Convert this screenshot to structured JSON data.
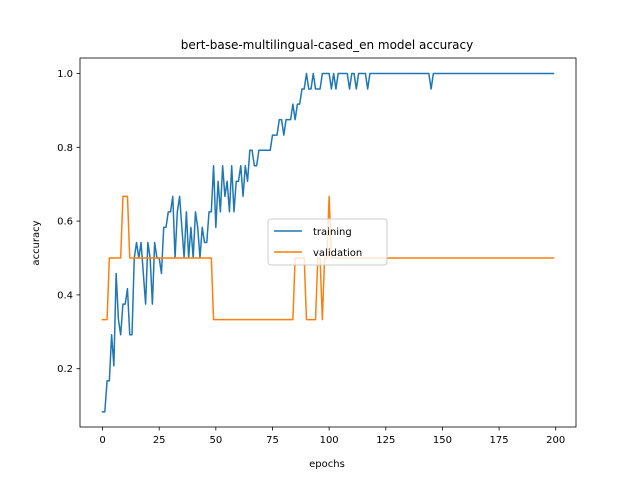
{
  "chart_data": {
    "type": "line",
    "title": "bert-base-multilingual-cased_en model accuracy",
    "xlabel": "epochs",
    "ylabel": "accuracy",
    "xlim": [
      -9.95,
      208.95
    ],
    "ylim": [
      0.042,
      1.042
    ],
    "xticks": [
      0,
      25,
      50,
      75,
      100,
      125,
      150,
      175,
      200
    ],
    "yticks": [
      0.2,
      0.4,
      0.6,
      0.8,
      1.0
    ],
    "xtick_labels": [
      "0",
      "25",
      "50",
      "75",
      "100",
      "125",
      "150",
      "175",
      "200"
    ],
    "ytick_labels": [
      "0.2",
      "0.4",
      "0.6",
      "0.8",
      "1.0"
    ],
    "legend_position": "center-right",
    "series": [
      {
        "name": "training",
        "color": "#1f77b4",
        "points": [
          [
            0,
            0.083
          ],
          [
            1,
            0.083
          ],
          [
            2,
            0.167
          ],
          [
            3,
            0.167
          ],
          [
            4,
            0.292
          ],
          [
            5,
            0.208
          ],
          [
            6,
            0.458
          ],
          [
            7,
            0.333
          ],
          [
            8,
            0.292
          ],
          [
            9,
            0.375
          ],
          [
            10,
            0.375
          ],
          [
            11,
            0.417
          ],
          [
            12,
            0.292
          ],
          [
            13,
            0.292
          ],
          [
            14,
            0.5
          ],
          [
            15,
            0.542
          ],
          [
            16,
            0.5
          ],
          [
            17,
            0.542
          ],
          [
            18,
            0.458
          ],
          [
            19,
            0.375
          ],
          [
            20,
            0.542
          ],
          [
            21,
            0.5
          ],
          [
            22,
            0.375
          ],
          [
            23,
            0.542
          ],
          [
            24,
            0.5
          ],
          [
            25,
            0.5
          ],
          [
            26,
            0.458
          ],
          [
            27,
            0.583
          ],
          [
            28,
            0.583
          ],
          [
            29,
            0.625
          ],
          [
            30,
            0.625
          ],
          [
            31,
            0.667
          ],
          [
            32,
            0.5
          ],
          [
            33,
            0.625
          ],
          [
            34,
            0.667
          ],
          [
            35,
            0.583
          ],
          [
            36,
            0.5
          ],
          [
            37,
            0.625
          ],
          [
            38,
            0.5
          ],
          [
            39,
            0.583
          ],
          [
            40,
            0.5
          ],
          [
            41,
            0.625
          ],
          [
            42,
            0.583
          ],
          [
            43,
            0.5
          ],
          [
            44,
            0.583
          ],
          [
            45,
            0.542
          ],
          [
            46,
            0.542
          ],
          [
            47,
            0.625
          ],
          [
            48,
            0.625
          ],
          [
            49,
            0.75
          ],
          [
            50,
            0.583
          ],
          [
            51,
            0.708
          ],
          [
            52,
            0.625
          ],
          [
            53,
            0.75
          ],
          [
            54,
            0.667
          ],
          [
            55,
            0.708
          ],
          [
            56,
            0.625
          ],
          [
            57,
            0.75
          ],
          [
            58,
            0.625
          ],
          [
            59,
            0.708
          ],
          [
            60,
            0.708
          ],
          [
            61,
            0.75
          ],
          [
            62,
            0.667
          ],
          [
            63,
            0.75
          ],
          [
            64,
            0.708
          ],
          [
            65,
            0.792
          ],
          [
            66,
            0.792
          ],
          [
            67,
            0.75
          ],
          [
            68,
            0.75
          ],
          [
            69,
            0.792
          ],
          [
            70,
            0.792
          ],
          [
            71,
            0.792
          ],
          [
            72,
            0.792
          ],
          [
            73,
            0.792
          ],
          [
            74,
            0.792
          ],
          [
            75,
            0.833
          ],
          [
            76,
            0.833
          ],
          [
            77,
            0.833
          ],
          [
            78,
            0.875
          ],
          [
            79,
            0.875
          ],
          [
            80,
            0.833
          ],
          [
            81,
            0.875
          ],
          [
            82,
            0.875
          ],
          [
            83,
            0.875
          ],
          [
            84,
            0.917
          ],
          [
            85,
            0.875
          ],
          [
            86,
            0.917
          ],
          [
            87,
            0.917
          ],
          [
            88,
            0.958
          ],
          [
            89,
            0.958
          ],
          [
            90,
            1.0
          ],
          [
            91,
            0.958
          ],
          [
            92,
            0.958
          ],
          [
            93,
            1.0
          ],
          [
            94,
            0.958
          ],
          [
            95,
            0.958
          ],
          [
            96,
            0.958
          ],
          [
            97,
            1.0
          ],
          [
            98,
            1.0
          ],
          [
            99,
            1.0
          ],
          [
            100,
            1.0
          ],
          [
            101,
            0.958
          ],
          [
            102,
            1.0
          ],
          [
            103,
            0.958
          ],
          [
            104,
            1.0
          ],
          [
            105,
            1.0
          ],
          [
            106,
            1.0
          ],
          [
            107,
            1.0
          ],
          [
            108,
            1.0
          ],
          [
            109,
            0.958
          ],
          [
            110,
            1.0
          ],
          [
            111,
            1.0
          ],
          [
            112,
            0.958
          ],
          [
            113,
            1.0
          ],
          [
            114,
            1.0
          ],
          [
            115,
            1.0
          ],
          [
            116,
            1.0
          ],
          [
            117,
            0.958
          ],
          [
            118,
            1.0
          ],
          [
            119,
            1.0
          ],
          [
            144,
            1.0
          ],
          [
            145,
            0.958
          ],
          [
            146,
            1.0
          ],
          [
            199,
            1.0
          ]
        ]
      },
      {
        "name": "validation",
        "color": "#ff7f0e",
        "points": [
          [
            0,
            0.333
          ],
          [
            1,
            0.333
          ],
          [
            2,
            0.333
          ],
          [
            3,
            0.5
          ],
          [
            8,
            0.5
          ],
          [
            9,
            0.667
          ],
          [
            10,
            0.667
          ],
          [
            11,
            0.667
          ],
          [
            12,
            0.5
          ],
          [
            48,
            0.5
          ],
          [
            49,
            0.333
          ],
          [
            83,
            0.333
          ],
          [
            84,
            0.333
          ],
          [
            85,
            0.5
          ],
          [
            86,
            0.5
          ],
          [
            87,
            0.5
          ],
          [
            88,
            0.5
          ],
          [
            89,
            0.5
          ],
          [
            90,
            0.333
          ],
          [
            91,
            0.333
          ],
          [
            92,
            0.333
          ],
          [
            93,
            0.333
          ],
          [
            94,
            0.333
          ],
          [
            95,
            0.5
          ],
          [
            96,
            0.5
          ],
          [
            97,
            0.333
          ],
          [
            98,
            0.5
          ],
          [
            99,
            0.5
          ],
          [
            100,
            0.667
          ],
          [
            101,
            0.5
          ],
          [
            102,
            0.5
          ],
          [
            103,
            0.5
          ],
          [
            104,
            0.5
          ],
          [
            105,
            0.5
          ],
          [
            106,
            0.5
          ],
          [
            199,
            0.5
          ]
        ]
      }
    ]
  }
}
